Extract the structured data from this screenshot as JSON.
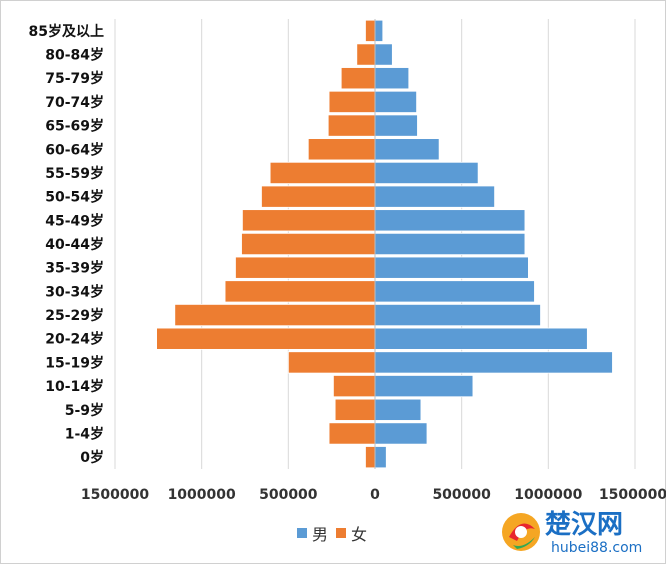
{
  "chart_data": {
    "type": "bar",
    "orientation": "horizontal",
    "categories": [
      "0岁",
      "1-4岁",
      "5-9岁",
      "10-14岁",
      "15-19岁",
      "20-24岁",
      "25-29岁",
      "30-34岁",
      "35-39岁",
      "40-44岁",
      "45-49岁",
      "50-54岁",
      "55-59岁",
      "60-64岁",
      "65-69岁",
      "70-74岁",
      "75-79岁",
      "80-84岁",
      "85岁及以上"
    ],
    "series": [
      {
        "name": "男",
        "color": "#5B9BD5",
        "side": "right",
        "values": [
          65000,
          300000,
          265000,
          565000,
          1370000,
          1225000,
          955000,
          920000,
          885000,
          865000,
          865000,
          690000,
          595000,
          370000,
          245000,
          240000,
          195000,
          100000,
          45000
        ]
      },
      {
        "name": "女",
        "color": "#ED7D31",
        "side": "left",
        "values": [
          55000,
          265000,
          230000,
          240000,
          500000,
          1260000,
          1155000,
          865000,
          805000,
          770000,
          765000,
          655000,
          605000,
          385000,
          270000,
          265000,
          195000,
          105000,
          55000
        ]
      }
    ],
    "x_ticks": [
      "1500000",
      "1000000",
      "500000",
      "0",
      "500000",
      "1000000",
      "1500000"
    ],
    "xlim": [
      -1500000,
      1500000
    ],
    "grid": "vertical",
    "legend": "bottom-center"
  },
  "watermark": {
    "text_cn": "楚汉网",
    "text_url": "hubei88.com"
  }
}
